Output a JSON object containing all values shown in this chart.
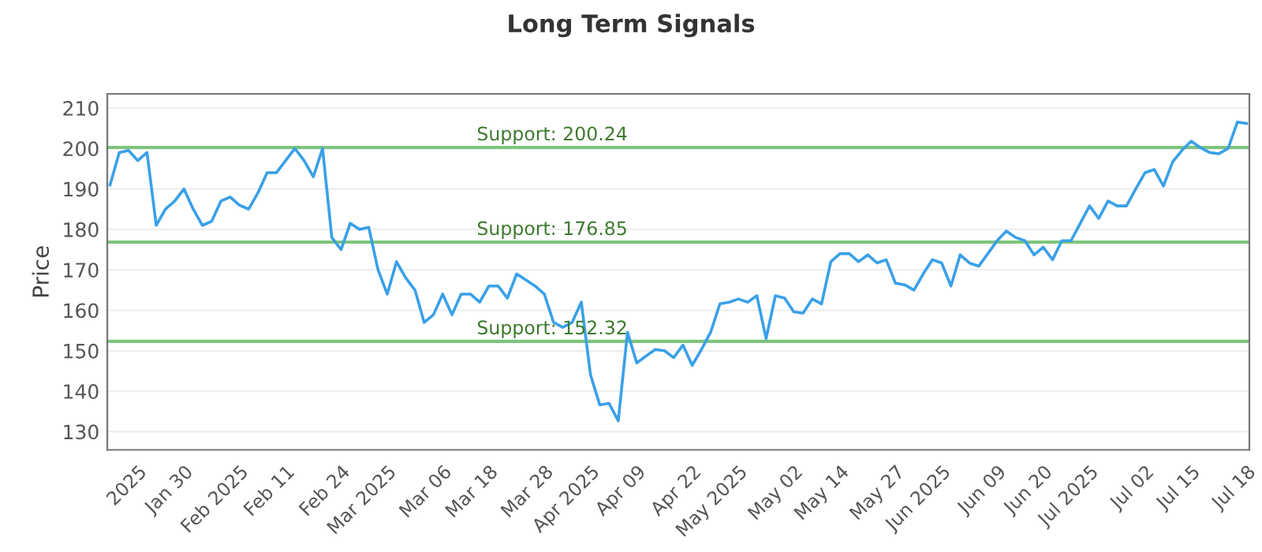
{
  "chart_data": {
    "type": "line",
    "title": "Long Term Signals",
    "ylabel": "Price",
    "categories": [
      null,
      null,
      null,
      "2025",
      null,
      null,
      null,
      null,
      "Jan 30",
      null,
      null,
      null,
      null,
      null,
      "Feb 2025",
      null,
      null,
      null,
      null,
      "Feb 11",
      null,
      null,
      null,
      null,
      null,
      "Feb 24",
      null,
      null,
      null,
      null,
      "Mar 2025",
      null,
      null,
      null,
      null,
      null,
      "Mar 06",
      null,
      null,
      null,
      null,
      "Mar 18",
      null,
      null,
      null,
      null,
      null,
      "Mar 28",
      null,
      null,
      null,
      null,
      "Apr 2025",
      null,
      null,
      null,
      null,
      "Apr 09",
      null,
      null,
      null,
      null,
      null,
      "Apr 22",
      null,
      null,
      null,
      null,
      "May 2025",
      null,
      null,
      null,
      null,
      null,
      "May 02",
      null,
      null,
      null,
      null,
      "May 14",
      null,
      null,
      null,
      null,
      null,
      "May 27",
      null,
      null,
      null,
      null,
      "Jun 2025",
      null,
      null,
      null,
      null,
      null,
      "Jun 09",
      null,
      null,
      null,
      null,
      "Jun 20",
      null,
      null,
      null,
      null,
      "Jul 2025",
      null,
      null,
      null,
      null,
      null,
      "Jul 02",
      null,
      null,
      null,
      null,
      "Jul 15",
      null,
      null,
      null,
      null,
      null,
      "Jul 18"
    ],
    "series": [
      {
        "color": "#3aa0e8",
        "values": [
          191,
          199,
          199.5,
          197,
          199,
          181,
          185,
          187,
          190,
          185,
          181,
          182,
          187,
          188,
          186,
          185,
          189,
          194,
          194,
          197,
          200,
          197,
          193,
          200,
          178,
          175,
          181.5,
          180,
          180.5,
          170,
          164,
          172,
          168,
          165,
          157,
          158.9,
          164,
          158.9,
          164,
          164,
          162,
          166,
          166,
          163,
          169,
          167.5,
          166,
          164,
          157,
          155.8,
          157,
          162,
          144,
          136.6,
          137,
          132.7,
          154.6,
          147,
          148.7,
          150.3,
          150,
          148.3,
          151.4,
          146.4,
          150.3,
          154.6,
          161.6,
          162,
          162.8,
          162,
          163.6,
          153,
          163.6,
          163,
          159.6,
          159.3,
          162.8,
          161.6,
          172,
          174,
          174,
          172,
          173.7,
          171.7,
          172.5,
          166.7,
          166.3,
          165,
          169,
          172.5,
          171.7,
          166,
          173.7,
          171.7,
          170.9,
          174,
          177.2,
          179.6,
          178,
          177.2,
          173.7,
          175.6,
          172.5,
          177.2,
          177.2,
          181.5,
          185.8,
          182.7,
          187,
          185.8,
          185.8,
          190,
          194,
          194.8,
          190.7,
          196.7,
          199.5,
          201.8,
          200.2,
          199,
          198.7,
          200,
          206.5,
          206.2
        ]
      }
    ],
    "ylim": [
      125.5,
      213.5
    ],
    "yticks": [
      130,
      140,
      150,
      160,
      170,
      180,
      190,
      200,
      210
    ],
    "grid": "y",
    "legend": false,
    "ref_lines": [
      {
        "axis": "y",
        "value": 200.24,
        "label": "Support: 200.24",
        "color": "#7dc47d"
      },
      {
        "axis": "y",
        "value": 176.85,
        "label": "Support: 176.85",
        "color": "#7dc47d"
      },
      {
        "axis": "y",
        "value": 152.32,
        "label": "Support: 152.32",
        "color": "#7dc47d"
      }
    ]
  }
}
